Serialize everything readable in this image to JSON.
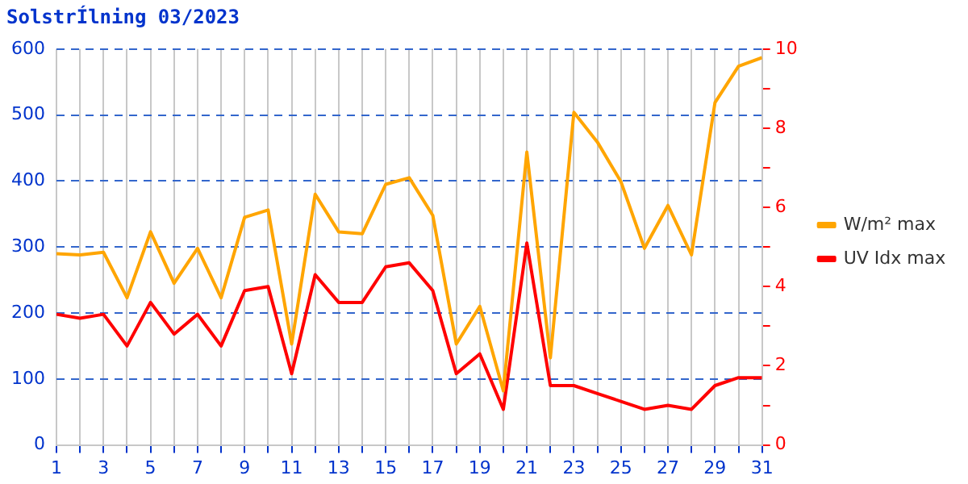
{
  "chart_data": {
    "type": "line",
    "title": "SolstrÍlning 03/2023",
    "x": [
      1,
      2,
      3,
      4,
      5,
      6,
      7,
      8,
      9,
      10,
      11,
      12,
      13,
      14,
      15,
      16,
      17,
      18,
      19,
      20,
      21,
      22,
      23,
      24,
      25,
      26,
      27,
      28,
      29,
      30,
      31
    ],
    "series": [
      {
        "name": "W/m² max",
        "color": "#ffa500",
        "values": [
          290,
          288,
          292,
          223,
          323,
          245,
          298,
          223,
          345,
          356,
          153,
          380,
          323,
          320,
          395,
          405,
          348,
          153,
          210,
          82,
          444,
          132,
          504,
          459,
          399,
          298,
          363,
          288,
          519,
          574,
          587
        ]
      },
      {
        "name": "UV Idx max",
        "color": "#ff0000",
        "axis": "y2",
        "values": [
          3.3,
          3.2,
          3.3,
          2.5,
          3.6,
          2.8,
          3.3,
          2.5,
          3.9,
          4.0,
          1.8,
          4.3,
          3.6,
          3.6,
          4.5,
          4.6,
          3.9,
          1.8,
          2.3,
          0.9,
          5.1,
          1.5,
          1.5,
          1.3,
          1.1,
          0.9,
          1.0,
          0.9,
          1.5,
          1.7,
          1.7
        ]
      }
    ],
    "xlim": [
      1,
      31
    ],
    "xticks": [
      1,
      {
        "value": 2,
        "label": null
      },
      3,
      {
        "value": 4,
        "label": null
      },
      5,
      {
        "value": 6,
        "label": null
      },
      7,
      {
        "value": 8,
        "label": null
      },
      9,
      {
        "value": 10,
        "label": null
      },
      11,
      {
        "value": 12,
        "label": null
      },
      13,
      {
        "value": 14,
        "label": null
      },
      15,
      {
        "value": 16,
        "label": null
      },
      17,
      {
        "value": 18,
        "label": null
      },
      19,
      {
        "value": 20,
        "label": null
      },
      21,
      {
        "value": 22,
        "label": null
      },
      23,
      {
        "value": 24,
        "label": null
      },
      25,
      {
        "value": 26,
        "label": null
      },
      27,
      {
        "value": 28,
        "label": null
      },
      29,
      {
        "value": 30,
        "label": null
      },
      31
    ],
    "ylim": [
      0,
      600
    ],
    "yticks": [
      0,
      100,
      200,
      300,
      400,
      500,
      600
    ],
    "y2lim": [
      0,
      10
    ],
    "y2ticks": [
      0,
      {
        "value": 1,
        "label": null
      },
      2,
      {
        "value": 3,
        "label": null
      },
      4,
      {
        "value": 5,
        "label": null
      },
      6,
      {
        "value": 7,
        "label": null
      },
      8,
      {
        "value": 9,
        "label": null
      },
      10
    ],
    "grid": true,
    "legend": "right",
    "marker": "none",
    "line_style": "solid"
  }
}
